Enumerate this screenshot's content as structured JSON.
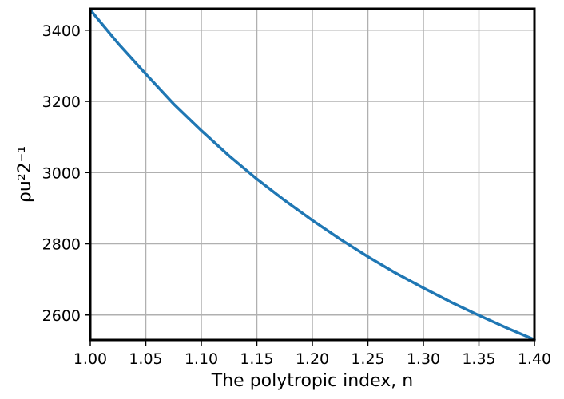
{
  "chart_data": {
    "type": "line",
    "title": "",
    "xlabel": "The polytropic index, n",
    "ylabel": "ρu²2⁻¹",
    "xlim": [
      1.0,
      1.4
    ],
    "ylim": [
      2530,
      3460
    ],
    "grid": true,
    "x_ticks": [
      "1.00",
      "1.05",
      "1.10",
      "1.15",
      "1.20",
      "1.25",
      "1.30",
      "1.35",
      "1.40"
    ],
    "y_ticks": [
      "2600",
      "2800",
      "3000",
      "3200",
      "3400"
    ],
    "series": [
      {
        "color": "#1f77b4",
        "x": [
          1.0,
          1.025,
          1.05,
          1.075,
          1.1,
          1.125,
          1.15,
          1.175,
          1.2,
          1.225,
          1.25,
          1.275,
          1.3,
          1.325,
          1.35,
          1.375,
          1.4
        ],
        "y": [
          3457,
          3363,
          3277,
          3193,
          3118,
          3047,
          2982,
          2922,
          2866,
          2813,
          2764,
          2718,
          2676,
          2636,
          2599,
          2564,
          2531
        ]
      }
    ]
  }
}
